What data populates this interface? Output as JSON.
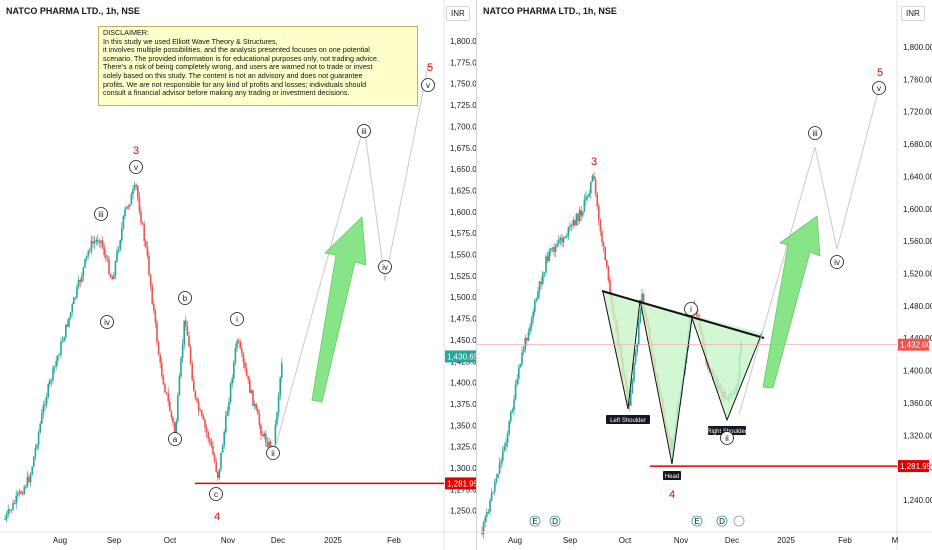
{
  "left_pane": {
    "title": "NATCO PHARMA LTD., 1h, NSE",
    "currency": "INR",
    "disclaimer_lines": [
      "DISCLAIMER:",
      "In this study we used Elliott Wave Theory & Structures,",
      "it involves multiple possibilities, and the analysis presented focuses on one potential",
      "scenario. The provided information is for educational purposes only, not trading advice.",
      "There's a risk of being completely wrong, and users are warned not to trade or invest",
      "solely based on this study. The content is not an advisory and does not guarantee",
      "profits. We are not responsible for any kind of profits and losses; individuals should",
      "consult a financial advisor before making any trading or investment decisions."
    ],
    "y_ticks": [
      "1,800.00",
      "1,775.00",
      "1,750.00",
      "1,725.00",
      "1,700.00",
      "1,675.00",
      "1,650.00",
      "1,625.00",
      "1,600.00",
      "1,575.00",
      "1,550.00",
      "1,525.00",
      "1,500.00",
      "1,475.00",
      "1,450.00",
      "1,425.00",
      "1,400.00",
      "1,375.00",
      "1,350.00",
      "1,325.00",
      "1,300.00",
      "1,275.00",
      "1,250.00"
    ],
    "x_ticks": [
      "Aug",
      "Sep",
      "Oct",
      "Nov",
      "Dec",
      "2025",
      "Feb"
    ],
    "last_price_tag": "1,430.65",
    "support_tag": "1,281.95",
    "wave_labels": [
      {
        "text": "3",
        "style": "red",
        "x": "Sep",
        "y": 1663
      },
      {
        "text": "v",
        "style": "circle",
        "x": "Sep",
        "y": 1643
      },
      {
        "text": "iii",
        "style": "circle",
        "x": "Aug",
        "y": 1590
      },
      {
        "text": "iv",
        "style": "circle",
        "x": "Aug",
        "y": 1460
      },
      {
        "text": "b",
        "style": "circle",
        "x": "Oct",
        "y": 1488
      },
      {
        "text": "a",
        "style": "circle",
        "x": "Oct",
        "y": 1335
      },
      {
        "text": "c",
        "style": "circle",
        "x": "Oct",
        "y": 1265
      },
      {
        "text": "4",
        "style": "red",
        "x": "Oct",
        "y": 1235
      },
      {
        "text": "i",
        "style": "circle",
        "x": "Nov",
        "y": 1460
      },
      {
        "text": "ii",
        "style": "circle",
        "x": "Dec",
        "y": 1318
      },
      {
        "text": "iii",
        "style": "circle",
        "x": "Jan",
        "y": 1701
      },
      {
        "text": "iv",
        "style": "circle",
        "x": "Jan",
        "y": 1519
      },
      {
        "text": "5",
        "style": "red",
        "x": "Feb",
        "y": 1790
      },
      {
        "text": "v",
        "style": "circle",
        "x": "Feb",
        "y": 1770
      }
    ]
  },
  "right_pane": {
    "title": "NATCO PHARMA LTD., 1h, NSE",
    "currency": "INR",
    "y_ticks": [
      "1,800.00",
      "1,760.00",
      "1,720.00",
      "1,680.00",
      "1,640.00",
      "1,600.00",
      "1,560.00",
      "1,520.00",
      "1,480.00",
      "1,440.00",
      "1,400.00",
      "1,360.00",
      "1,320.00",
      "1,280.00",
      "1,240.00"
    ],
    "x_ticks": [
      "Aug",
      "Sep",
      "Oct",
      "Nov",
      "Dec",
      "2025",
      "Feb",
      "M"
    ],
    "last_price_tag": "1,432.00",
    "support_tag": "1,281.95",
    "pattern_labels": [
      "Left Shoulder",
      "Head",
      "Right Shoulder"
    ],
    "wave_labels": [
      {
        "text": "3",
        "style": "red"
      },
      {
        "text": "i",
        "style": "circle"
      },
      {
        "text": "ii",
        "style": "circle"
      },
      {
        "text": "4",
        "style": "red"
      },
      {
        "text": "iii",
        "style": "circle"
      },
      {
        "text": "iv",
        "style": "circle"
      },
      {
        "text": "5",
        "style": "red"
      },
      {
        "text": "v",
        "style": "circle"
      }
    ],
    "event_markers": [
      "E",
      "D",
      "E",
      "D"
    ]
  },
  "colors": {
    "up": "#26a69a",
    "down": "#ef5350",
    "support_line": "#e00000",
    "arrow_fill": "#7be37b",
    "pattern_fill": "#c8f5c8",
    "neckline": "#111111"
  }
}
